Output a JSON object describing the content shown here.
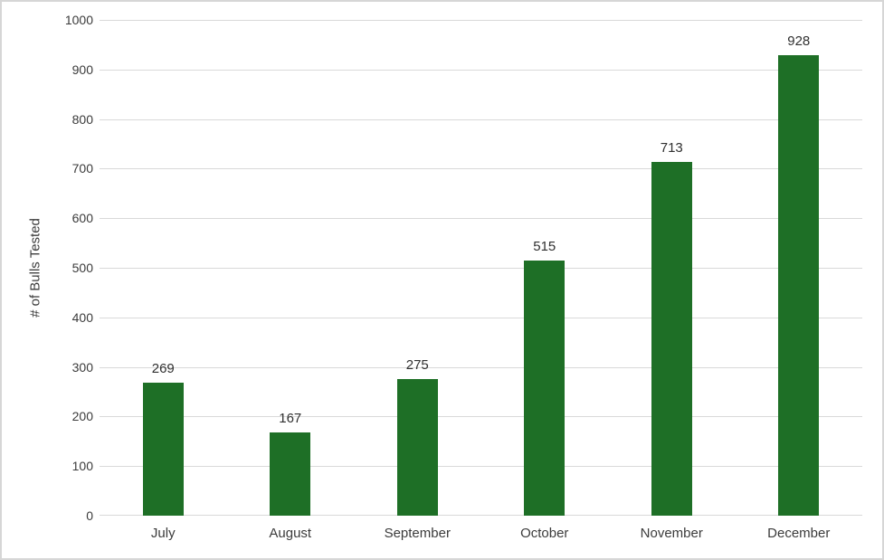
{
  "chart_data": {
    "type": "bar",
    "title": "",
    "xlabel": "",
    "ylabel": "# of Bulls Tested",
    "categories": [
      "July",
      "August",
      "September",
      "October",
      "November",
      "December"
    ],
    "values": [
      269,
      167,
      275,
      515,
      713,
      928
    ],
    "data_labels": [
      "269",
      "167",
      "275",
      "515",
      "713",
      "928"
    ],
    "ylim": [
      0,
      1000
    ],
    "yticks": [
      0,
      100,
      200,
      300,
      400,
      500,
      600,
      700,
      800,
      900,
      1000
    ],
    "grid": true,
    "legend": false,
    "bar_color": "#1e6f26",
    "gridline_color": "#d9d9d9",
    "text_color": "#3b3b3b",
    "background_color": "#ffffff",
    "border_color": "#d6d6d6"
  }
}
